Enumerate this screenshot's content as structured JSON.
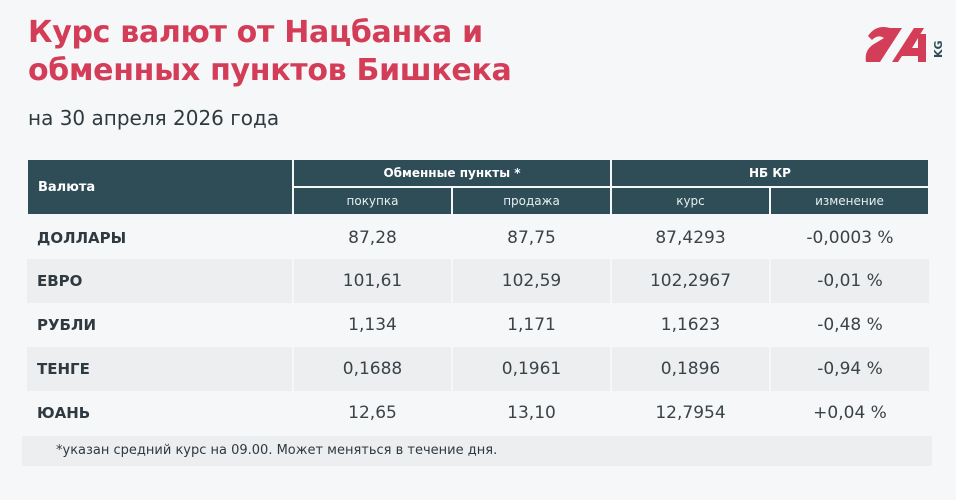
{
  "title_line1": "Курс валют от Нацбанка и",
  "title_line2": "обменных пунктов Бишкека",
  "subtitle": "на 30 апреля 2026 года",
  "logo": {
    "text": "24",
    "suffix": "KG",
    "colors": {
      "main": "#d43d57",
      "suffix": "#2f4d57"
    }
  },
  "table": {
    "col_currency": "Валюта",
    "group_exchange": "Обменные пункты *",
    "group_nb": "НБ КР",
    "sub_buy": "покупка",
    "sub_sell": "продажа",
    "sub_rate": "курс",
    "sub_change": "изменение",
    "rows": [
      {
        "name": "ДОЛЛАРЫ",
        "buy": "87,28",
        "sell": "87,75",
        "rate": "87,4293",
        "change": "-0,0003 %"
      },
      {
        "name": "ЕВРО",
        "buy": "101,61",
        "sell": "102,59",
        "rate": "102,2967",
        "change": "-0,01 %"
      },
      {
        "name": "РУБЛИ",
        "buy": "1,134",
        "sell": "1,171",
        "rate": "1,1623",
        "change": "-0,48 %"
      },
      {
        "name": "ТЕНГЕ",
        "buy": "0,1688",
        "sell": "0,1961",
        "rate": "0,1896",
        "change": "-0,94 %"
      },
      {
        "name": "ЮАНЬ",
        "buy": "12,65",
        "sell": "13,10",
        "rate": "12,7954",
        "change": "+0,04 %"
      }
    ]
  },
  "footnote": "*указан средний курс на 09.00. Может меняться в течение дня."
}
